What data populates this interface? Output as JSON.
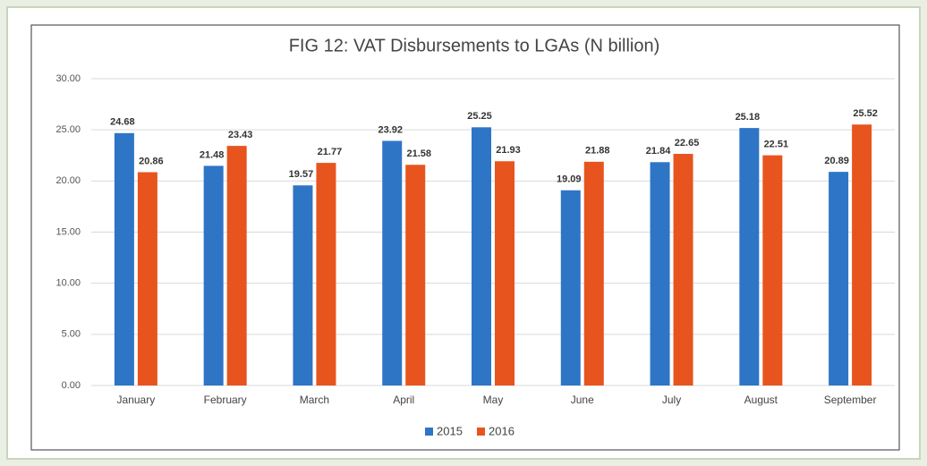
{
  "chart_data": {
    "type": "bar",
    "title": "FIG 12: VAT Disbursements to LGAs (N billion)",
    "categories": [
      "January",
      "February",
      "March",
      "April",
      "May",
      "June",
      "July",
      "August",
      "September"
    ],
    "series": [
      {
        "name": "2015",
        "color": "#2e75c6",
        "values": [
          24.68,
          21.48,
          19.57,
          23.92,
          25.25,
          19.09,
          21.84,
          25.18,
          20.89
        ]
      },
      {
        "name": "2016",
        "color": "#e8541e",
        "values": [
          20.86,
          23.43,
          21.77,
          21.58,
          21.93,
          21.88,
          22.65,
          22.51,
          25.52
        ]
      }
    ],
    "ylim": [
      0,
      30
    ],
    "yticks": [
      {
        "value": 0,
        "label": "0.00"
      },
      {
        "value": 5,
        "label": "5.00"
      },
      {
        "value": 10,
        "label": "10.00"
      },
      {
        "value": 15,
        "label": "15.00"
      },
      {
        "value": 20,
        "label": "20.00"
      },
      {
        "value": 25,
        "label": "25.00"
      },
      {
        "value": 30,
        "label": "30.00"
      }
    ],
    "grid": true,
    "legend": "bottom"
  }
}
